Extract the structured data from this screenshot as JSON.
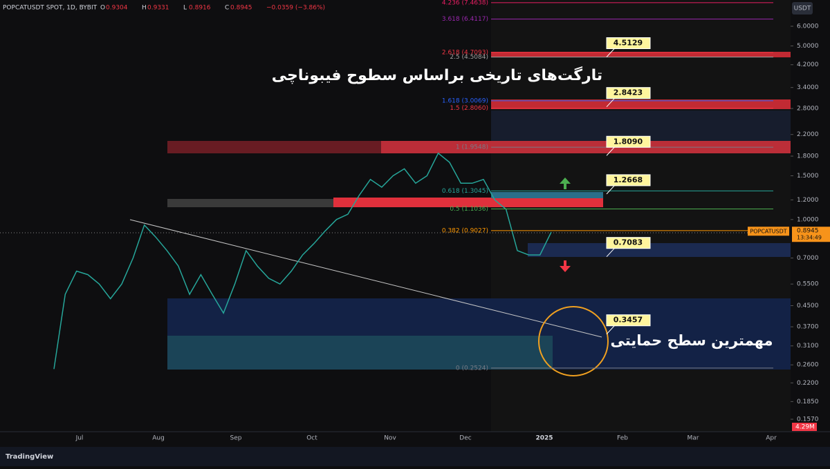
{
  "header": {
    "symbol": "POPCATUSDT SPOT, 1D, BYBIT",
    "fields": [
      {
        "key": "O",
        "value": "0.9304"
      },
      {
        "key": "H",
        "value": "0.9331"
      },
      {
        "key": "L",
        "value": "0.8916"
      },
      {
        "key": "C",
        "value": "0.8945"
      }
    ],
    "change": "−0.0359 (−3.86%)"
  },
  "price_axis": {
    "currency": "USDT",
    "log_scale": true,
    "ticks": [
      {
        "value": 6,
        "label": "6.0000"
      },
      {
        "value": 5,
        "label": "5.0000"
      },
      {
        "value": 4.2,
        "label": "4.2000"
      },
      {
        "value": 3.4,
        "label": "3.4000"
      },
      {
        "value": 2.8,
        "label": "2.8000"
      },
      {
        "value": 2.2,
        "label": "2.2000"
      },
      {
        "value": 1.8,
        "label": "1.8000"
      },
      {
        "value": 1.5,
        "label": "1.5000"
      },
      {
        "value": 1.2,
        "label": "1.2000"
      },
      {
        "value": 1,
        "label": "1.0000"
      },
      {
        "value": 0.7,
        "label": "0.7000"
      },
      {
        "value": 0.55,
        "label": "0.5500"
      },
      {
        "value": 0.45,
        "label": "0.4500"
      },
      {
        "value": 0.37,
        "label": "0.3700"
      },
      {
        "value": 0.31,
        "label": "0.3100"
      },
      {
        "value": 0.26,
        "label": "0.2600"
      },
      {
        "value": 0.22,
        "label": "0.2200"
      },
      {
        "value": 0.185,
        "label": "0.1850"
      },
      {
        "value": 0.157,
        "label": "0.1570"
      }
    ],
    "current": {
      "symbol": "POPCATUSDT",
      "value": 0.8945,
      "label": "0.8945",
      "countdown": "13:34:49"
    },
    "volume": "4.29M"
  },
  "time_axis": [
    "Jul",
    "Aug",
    "Sep",
    "Oct",
    "Nov",
    "Dec",
    "2025",
    "Feb",
    "Mar",
    "Apr"
  ],
  "price_path": {
    "color": "#26a69a",
    "values": [
      0.25,
      0.5,
      0.62,
      0.6,
      0.55,
      0.48,
      0.55,
      0.7,
      0.95,
      0.85,
      0.75,
      0.65,
      0.5,
      0.6,
      0.5,
      0.42,
      0.55,
      0.75,
      0.65,
      0.58,
      0.55,
      0.62,
      0.72,
      0.8,
      0.9,
      1.0,
      1.05,
      1.25,
      1.45,
      1.35,
      1.5,
      1.6,
      1.4,
      1.5,
      1.85,
      1.7,
      1.4,
      1.4,
      1.45,
      1.2,
      1.1,
      0.75,
      0.72,
      0.72,
      0.89
    ]
  },
  "fib_levels": [
    {
      "label": "4.236 (7.4638)",
      "value": 7.4638,
      "color": "#e91e63"
    },
    {
      "label": "3.618 (6.4117)",
      "value": 6.4117,
      "color": "#9c27b0"
    },
    {
      "label": "2.618 (4.7093)",
      "value": 4.7093,
      "color": "#f23645"
    },
    {
      "label": "2.5 (4.5084)",
      "value": 4.5084,
      "color": "#a0a0a0"
    },
    {
      "label": "1.618 (3.0069)",
      "value": 3.0069,
      "color": "#2962ff"
    },
    {
      "label": "1.5 (2.8060)",
      "value": 2.806,
      "color": "#f23645"
    },
    {
      "label": "1 (1.9548)",
      "value": 1.9548,
      "color": "#787b86"
    },
    {
      "label": "0.618 (1.3045)",
      "value": 1.3045,
      "color": "#26a69a"
    },
    {
      "label": "0.5 (1.1036)",
      "value": 1.1036,
      "color": "#4caf50"
    },
    {
      "label": "0.382 (0.9027)",
      "value": 0.9027,
      "color": "#ff9800"
    },
    {
      "label": "0 (0.2524)",
      "value": 0.2524,
      "color": "#787b86"
    }
  ],
  "callouts": [
    {
      "label": "4.5129",
      "value": 4.5129
    },
    {
      "label": "2.8423",
      "value": 2.8423
    },
    {
      "label": "1.8090",
      "value": 1.809
    },
    {
      "label": "1.2668",
      "value": 1.2668
    },
    {
      "label": "0.7083",
      "value": 0.7083
    },
    {
      "label": "0.3457",
      "value": 0.3457
    }
  ],
  "annotations": {
    "targets": "تارگت‌های تاریخی براساس سطوح فیبوناچی",
    "support": "مهمترین سطح حمایتی"
  },
  "footer": {
    "brand": "TradingView"
  }
}
